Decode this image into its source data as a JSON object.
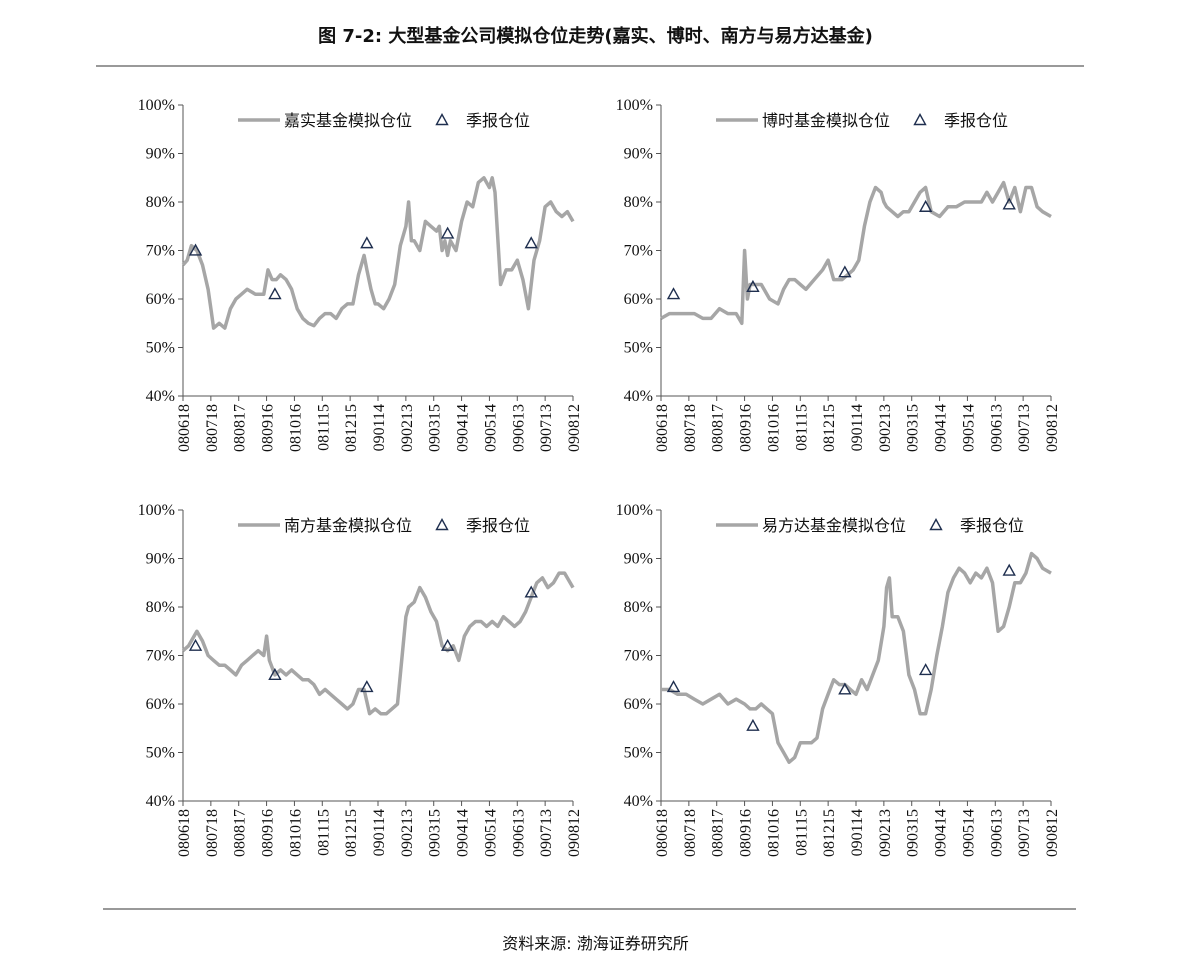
{
  "header": {
    "title": "图 7-2:  大型基金公司模拟仓位走势(嘉实、博时、南方与易方达基金)"
  },
  "footer": {
    "source": "资料来源:  渤海证券研究所"
  },
  "chart_data": [
    {
      "type": "line",
      "ylim": [
        0.4,
        1.0
      ],
      "yticks": [
        "100%",
        "90%",
        "80%",
        "70%",
        "60%",
        "50%",
        "40%"
      ],
      "categories": [
        "080618",
        "080718",
        "080817",
        "080916",
        "081016",
        "081115",
        "081215",
        "090114",
        "090213",
        "090315",
        "090414",
        "090514",
        "090613",
        "090713",
        "090812"
      ],
      "line_color": "#a6a6a6",
      "marker_color": "#1f2f4f",
      "series": [
        {
          "name": "嘉实基金模拟仓位",
          "x": [
            0.0,
            0.15,
            0.3,
            0.5,
            0.7,
            0.9,
            1.0,
            1.1,
            1.3,
            1.5,
            1.7,
            1.9,
            2.1,
            2.3,
            2.6,
            2.9,
            3.05,
            3.2,
            3.35,
            3.5,
            3.7,
            3.9,
            4.1,
            4.3,
            4.5,
            4.7,
            4.9,
            5.1,
            5.3,
            5.5,
            5.7,
            5.9,
            6.1,
            6.3,
            6.5,
            6.6,
            6.75,
            6.9,
            7.0,
            7.2,
            7.4,
            7.6,
            7.8,
            8.0,
            8.1,
            8.2,
            8.3,
            8.5,
            8.7,
            8.9,
            9.1,
            9.2,
            9.3,
            9.4,
            9.5,
            9.6,
            9.8,
            10.0,
            10.2,
            10.4,
            10.6,
            10.8,
            11.0,
            11.1,
            11.2,
            11.4,
            11.6,
            11.8,
            12.0,
            12.2,
            12.4,
            12.6,
            12.8,
            13.0,
            13.2,
            13.4,
            13.6,
            13.8,
            14.0
          ],
          "y": [
            0.67,
            0.68,
            0.71,
            0.7,
            0.67,
            0.62,
            0.58,
            0.54,
            0.55,
            0.54,
            0.58,
            0.6,
            0.61,
            0.62,
            0.61,
            0.61,
            0.66,
            0.64,
            0.64,
            0.65,
            0.64,
            0.62,
            0.58,
            0.56,
            0.55,
            0.545,
            0.56,
            0.57,
            0.57,
            0.56,
            0.58,
            0.59,
            0.59,
            0.65,
            0.69,
            0.66,
            0.62,
            0.59,
            0.59,
            0.58,
            0.6,
            0.63,
            0.71,
            0.75,
            0.8,
            0.72,
            0.72,
            0.7,
            0.76,
            0.75,
            0.74,
            0.75,
            0.7,
            0.72,
            0.69,
            0.72,
            0.7,
            0.76,
            0.8,
            0.79,
            0.84,
            0.85,
            0.83,
            0.85,
            0.82,
            0.63,
            0.66,
            0.66,
            0.68,
            0.64,
            0.58,
            0.68,
            0.72,
            0.79,
            0.8,
            0.78,
            0.77,
            0.78,
            0.76
          ]
        },
        {
          "name": "季报仓位",
          "marker": "triangle",
          "x": [
            0.45,
            3.3,
            6.6,
            9.5,
            12.5
          ],
          "y": [
            0.7,
            0.61,
            0.715,
            0.735,
            0.715
          ]
        }
      ]
    },
    {
      "type": "line",
      "ylim": [
        0.4,
        1.0
      ],
      "yticks": [
        "100%",
        "90%",
        "80%",
        "70%",
        "60%",
        "50%",
        "40%"
      ],
      "categories": [
        "080618",
        "080718",
        "080817",
        "080916",
        "081016",
        "081115",
        "081215",
        "090114",
        "090213",
        "090315",
        "090414",
        "090514",
        "090613",
        "090713",
        "090812"
      ],
      "line_color": "#a6a6a6",
      "marker_color": "#1f2f4f",
      "series": [
        {
          "name": "博时基金模拟仓位",
          "x": [
            0.0,
            0.3,
            0.6,
            0.9,
            1.2,
            1.5,
            1.8,
            2.1,
            2.4,
            2.7,
            2.9,
            3.0,
            3.1,
            3.2,
            3.4,
            3.6,
            3.9,
            4.2,
            4.4,
            4.6,
            4.8,
            5.0,
            5.2,
            5.5,
            5.8,
            6.0,
            6.2,
            6.5,
            6.7,
            6.9,
            7.1,
            7.3,
            7.5,
            7.7,
            7.9,
            8.0,
            8.1,
            8.3,
            8.5,
            8.7,
            8.9,
            9.1,
            9.3,
            9.5,
            9.7,
            10.0,
            10.3,
            10.6,
            10.9,
            11.2,
            11.5,
            11.7,
            11.9,
            12.1,
            12.3,
            12.5,
            12.7,
            12.9,
            13.1,
            13.3,
            13.5,
            13.7,
            14.0
          ],
          "y": [
            0.56,
            0.57,
            0.57,
            0.57,
            0.57,
            0.56,
            0.56,
            0.58,
            0.57,
            0.57,
            0.55,
            0.7,
            0.6,
            0.63,
            0.63,
            0.63,
            0.6,
            0.59,
            0.62,
            0.64,
            0.64,
            0.63,
            0.62,
            0.64,
            0.66,
            0.68,
            0.64,
            0.64,
            0.65,
            0.66,
            0.68,
            0.75,
            0.8,
            0.83,
            0.82,
            0.8,
            0.79,
            0.78,
            0.77,
            0.78,
            0.78,
            0.8,
            0.82,
            0.83,
            0.78,
            0.77,
            0.79,
            0.79,
            0.8,
            0.8,
            0.8,
            0.82,
            0.8,
            0.82,
            0.84,
            0.8,
            0.83,
            0.78,
            0.83,
            0.83,
            0.79,
            0.78,
            0.77
          ]
        },
        {
          "name": "季报仓位",
          "marker": "triangle",
          "x": [
            0.45,
            3.3,
            6.6,
            9.5,
            12.5
          ],
          "y": [
            0.61,
            0.625,
            0.655,
            0.79,
            0.795
          ]
        }
      ]
    },
    {
      "type": "line",
      "ylim": [
        0.4,
        1.0
      ],
      "yticks": [
        "100%",
        "90%",
        "80%",
        "70%",
        "60%",
        "50%",
        "40%"
      ],
      "categories": [
        "080618",
        "080718",
        "080817",
        "080916",
        "081016",
        "081115",
        "081215",
        "090114",
        "090213",
        "090315",
        "090414",
        "090514",
        "090613",
        "090713",
        "090812"
      ],
      "line_color": "#a6a6a6",
      "marker_color": "#1f2f4f",
      "series": [
        {
          "name": "南方基金模拟仓位",
          "x": [
            0.0,
            0.2,
            0.4,
            0.5,
            0.7,
            0.9,
            1.1,
            1.3,
            1.5,
            1.7,
            1.9,
            2.1,
            2.3,
            2.5,
            2.7,
            2.9,
            3.0,
            3.1,
            3.3,
            3.5,
            3.7,
            3.9,
            4.1,
            4.3,
            4.5,
            4.7,
            4.9,
            5.1,
            5.3,
            5.5,
            5.7,
            5.9,
            6.1,
            6.3,
            6.5,
            6.7,
            6.9,
            7.1,
            7.3,
            7.5,
            7.7,
            7.8,
            7.9,
            8.0,
            8.1,
            8.3,
            8.5,
            8.7,
            8.9,
            9.1,
            9.3,
            9.5,
            9.7,
            9.9,
            10.1,
            10.3,
            10.5,
            10.7,
            10.9,
            11.1,
            11.3,
            11.5,
            11.7,
            11.9,
            12.1,
            12.3,
            12.5,
            12.7,
            12.9,
            13.1,
            13.3,
            13.5,
            13.7,
            14.0
          ],
          "y": [
            0.71,
            0.72,
            0.74,
            0.75,
            0.73,
            0.7,
            0.69,
            0.68,
            0.68,
            0.67,
            0.66,
            0.68,
            0.69,
            0.7,
            0.71,
            0.7,
            0.74,
            0.69,
            0.66,
            0.67,
            0.66,
            0.67,
            0.66,
            0.65,
            0.65,
            0.64,
            0.62,
            0.63,
            0.62,
            0.61,
            0.6,
            0.59,
            0.6,
            0.63,
            0.63,
            0.58,
            0.59,
            0.58,
            0.58,
            0.59,
            0.6,
            0.66,
            0.72,
            0.78,
            0.8,
            0.81,
            0.84,
            0.82,
            0.79,
            0.77,
            0.72,
            0.71,
            0.72,
            0.69,
            0.74,
            0.76,
            0.77,
            0.77,
            0.76,
            0.77,
            0.76,
            0.78,
            0.77,
            0.76,
            0.77,
            0.79,
            0.82,
            0.85,
            0.86,
            0.84,
            0.85,
            0.87,
            0.87,
            0.84
          ]
        },
        {
          "name": "季报仓位",
          "marker": "triangle",
          "x": [
            0.45,
            3.3,
            6.6,
            9.5,
            12.5
          ],
          "y": [
            0.72,
            0.66,
            0.635,
            0.72,
            0.83
          ]
        }
      ]
    },
    {
      "type": "line",
      "ylim": [
        0.4,
        1.0
      ],
      "yticks": [
        "100%",
        "90%",
        "80%",
        "70%",
        "60%",
        "50%",
        "40%"
      ],
      "categories": [
        "080618",
        "080718",
        "080817",
        "080916",
        "081016",
        "081115",
        "081215",
        "090114",
        "090213",
        "090315",
        "090414",
        "090514",
        "090613",
        "090713",
        "090812"
      ],
      "line_color": "#a6a6a6",
      "marker_color": "#1f2f4f",
      "series": [
        {
          "name": "易方达基金模拟仓位",
          "x": [
            0.0,
            0.3,
            0.6,
            0.9,
            1.2,
            1.5,
            1.8,
            2.1,
            2.4,
            2.7,
            3.0,
            3.2,
            3.4,
            3.6,
            3.8,
            4.0,
            4.2,
            4.4,
            4.6,
            4.8,
            5.0,
            5.2,
            5.4,
            5.6,
            5.8,
            6.0,
            6.2,
            6.4,
            6.6,
            6.8,
            7.0,
            7.2,
            7.4,
            7.6,
            7.8,
            8.0,
            8.1,
            8.2,
            8.3,
            8.5,
            8.7,
            8.9,
            9.1,
            9.3,
            9.5,
            9.7,
            9.9,
            10.1,
            10.3,
            10.5,
            10.7,
            10.9,
            11.1,
            11.3,
            11.5,
            11.7,
            11.9,
            12.1,
            12.3,
            12.5,
            12.7,
            12.9,
            13.1,
            13.3,
            13.5,
            13.7,
            14.0
          ],
          "y": [
            0.63,
            0.63,
            0.62,
            0.62,
            0.61,
            0.6,
            0.61,
            0.62,
            0.6,
            0.61,
            0.6,
            0.59,
            0.59,
            0.6,
            0.59,
            0.58,
            0.52,
            0.5,
            0.48,
            0.49,
            0.52,
            0.52,
            0.52,
            0.53,
            0.59,
            0.62,
            0.65,
            0.64,
            0.64,
            0.63,
            0.62,
            0.65,
            0.63,
            0.66,
            0.69,
            0.76,
            0.84,
            0.86,
            0.78,
            0.78,
            0.75,
            0.66,
            0.63,
            0.58,
            0.58,
            0.63,
            0.7,
            0.76,
            0.83,
            0.86,
            0.88,
            0.87,
            0.85,
            0.87,
            0.86,
            0.88,
            0.85,
            0.75,
            0.76,
            0.8,
            0.85,
            0.85,
            0.87,
            0.91,
            0.9,
            0.88,
            0.87
          ]
        },
        {
          "name": "季报仓位",
          "marker": "triangle",
          "x": [
            0.45,
            3.3,
            6.6,
            9.5,
            12.5
          ],
          "y": [
            0.635,
            0.555,
            0.63,
            0.67,
            0.875
          ]
        }
      ]
    }
  ]
}
